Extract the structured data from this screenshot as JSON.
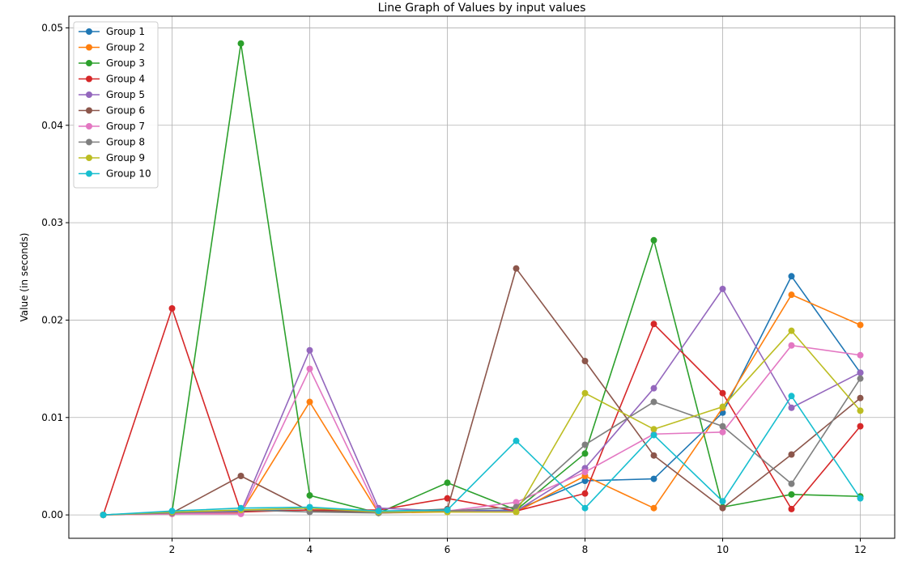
{
  "chart_data": {
    "type": "line",
    "title": "Line Graph of Values by input values",
    "xlabel": "",
    "ylabel": "Value (in seconds)",
    "xlim": [
      0.5,
      12.5
    ],
    "ylim": [
      -0.0024,
      0.0512
    ],
    "xticks": [
      2,
      4,
      6,
      8,
      10,
      12
    ],
    "yticks": [
      0.0,
      0.01,
      0.02,
      0.03,
      0.04,
      0.05
    ],
    "ytick_labels": [
      "0.00",
      "0.01",
      "0.02",
      "0.03",
      "0.04",
      "0.05"
    ],
    "grid": true,
    "legend_position": "top-left",
    "x": [
      1,
      2,
      3,
      4,
      5,
      6,
      7,
      8,
      9,
      10,
      11,
      12
    ],
    "series": [
      {
        "name": "Group 1",
        "color": "#1f77b4",
        "values": [
          0.0,
          0.0003,
          0.0004,
          0.0005,
          0.0003,
          0.0004,
          0.0005,
          0.0035,
          0.0037,
          0.0105,
          0.0245,
          0.0146
        ]
      },
      {
        "name": "Group 2",
        "color": "#ff7f0e",
        "values": [
          0.0,
          0.0001,
          0.0002,
          0.0116,
          0.0002,
          0.0003,
          0.0003,
          0.004,
          0.0007,
          0.011,
          0.0226,
          0.0195
        ]
      },
      {
        "name": "Group 3",
        "color": "#2ca02c",
        "values": [
          0.0,
          0.0003,
          0.0484,
          0.002,
          0.0002,
          0.0033,
          0.0005,
          0.0063,
          0.0282,
          0.0008,
          0.0021,
          0.0019
        ]
      },
      {
        "name": "Group 4",
        "color": "#d62728",
        "values": [
          0.0,
          0.0212,
          0.0003,
          0.0005,
          0.0005,
          0.0017,
          0.0004,
          0.0022,
          0.0196,
          0.0125,
          0.0006,
          0.0091
        ]
      },
      {
        "name": "Group 5",
        "color": "#9467bd",
        "values": [
          0.0,
          0.0002,
          0.0003,
          0.0169,
          0.0007,
          0.0004,
          0.0004,
          0.0048,
          0.013,
          0.0232,
          0.011,
          0.0146
        ]
      },
      {
        "name": "Group 6",
        "color": "#8c564b",
        "values": [
          0.0,
          0.0002,
          0.004,
          0.0004,
          0.0003,
          0.0006,
          0.0253,
          0.0158,
          0.0061,
          0.0007,
          0.0062,
          0.012
        ]
      },
      {
        "name": "Group 7",
        "color": "#e377c2",
        "values": [
          0.0,
          0.0001,
          0.0001,
          0.015,
          0.0003,
          0.0004,
          0.0013,
          0.0044,
          0.0083,
          0.0085,
          0.0174,
          0.0164
        ]
      },
      {
        "name": "Group 8",
        "color": "#7f7f7f",
        "values": [
          0.0,
          0.0002,
          0.0005,
          0.0003,
          0.0002,
          0.0004,
          0.0008,
          0.0072,
          0.0116,
          0.0091,
          0.0032,
          0.014
        ]
      },
      {
        "name": "Group 9",
        "color": "#bcbd22",
        "values": [
          0.0,
          0.0003,
          0.0005,
          0.0007,
          0.0003,
          0.0003,
          0.0003,
          0.0125,
          0.0088,
          0.0111,
          0.0189,
          0.0107
        ]
      },
      {
        "name": "Group 10",
        "color": "#17becf",
        "values": [
          0.0,
          0.0004,
          0.0007,
          0.0008,
          0.0004,
          0.0005,
          0.0076,
          0.0007,
          0.0082,
          0.0014,
          0.0122,
          0.0017
        ]
      }
    ]
  }
}
